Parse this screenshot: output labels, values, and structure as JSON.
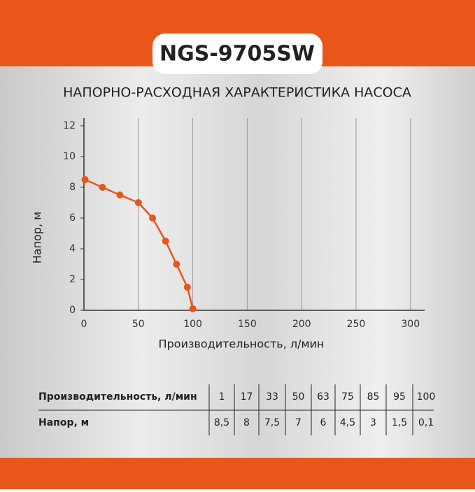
{
  "header": {
    "title": "NGS-9705SW"
  },
  "chart_data": {
    "type": "line",
    "title": "НАПОРНО-РАСХОДНАЯ ХАРАКТЕРИСТИКА НАСОСА",
    "x_label": "Производительность, л/мин",
    "y_label": "Напор, м",
    "x": [
      1,
      17,
      33,
      50,
      63,
      75,
      85,
      95,
      100
    ],
    "series": [
      {
        "color": "#e8561a",
        "values": [
          8.5,
          8,
          7.5,
          7,
          6,
          4.5,
          3,
          1.5,
          0.1
        ]
      }
    ],
    "xlim": [
      0,
      313
    ],
    "xticks": [
      0,
      50,
      100,
      150,
      200,
      250,
      300
    ],
    "ylim": [
      0,
      12.5
    ],
    "yticks": [
      0,
      2,
      4,
      6,
      8,
      10,
      12
    ],
    "grid": true
  },
  "table": {
    "rows": [
      [
        "Производительность, л/мин",
        "1",
        "17",
        "33",
        "50",
        "63",
        "75",
        "85",
        "95",
        "100"
      ],
      [
        "Напор, м",
        "8,5",
        "8",
        "7,5",
        "7",
        "6",
        "4,5",
        "3",
        "1,5",
        "0,1"
      ]
    ]
  }
}
